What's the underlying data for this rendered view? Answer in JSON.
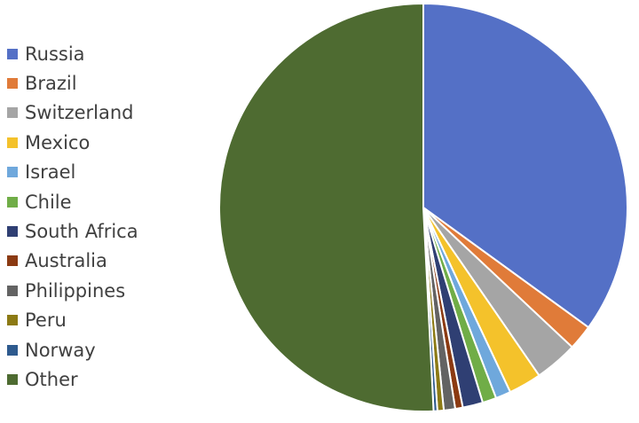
{
  "chart_data": {
    "type": "pie",
    "title": "",
    "legend_position": "left",
    "slices": [
      {
        "label": "Russia",
        "value": 35.0,
        "color": "#5470C6"
      },
      {
        "label": "Brazil",
        "value": 2.0,
        "color": "#E07B39"
      },
      {
        "label": "Switzerland",
        "value": 3.4,
        "color": "#A5A5A5"
      },
      {
        "label": "Mexico",
        "value": 2.6,
        "color": "#F4C22B"
      },
      {
        "label": "Israel",
        "value": 1.2,
        "color": "#6FA8DC"
      },
      {
        "label": "Chile",
        "value": 1.1,
        "color": "#70AD47"
      },
      {
        "label": "South Africa",
        "value": 1.6,
        "color": "#2F3F73"
      },
      {
        "label": "Australia",
        "value": 0.6,
        "color": "#8B3A12"
      },
      {
        "label": "Philippines",
        "value": 0.9,
        "color": "#636363"
      },
      {
        "label": "Peru",
        "value": 0.5,
        "color": "#8C7A14"
      },
      {
        "label": "Norway",
        "value": 0.3,
        "color": "#2E5A8E"
      },
      {
        "label": "Other",
        "value": 50.8,
        "color": "#4E6B31"
      }
    ]
  }
}
